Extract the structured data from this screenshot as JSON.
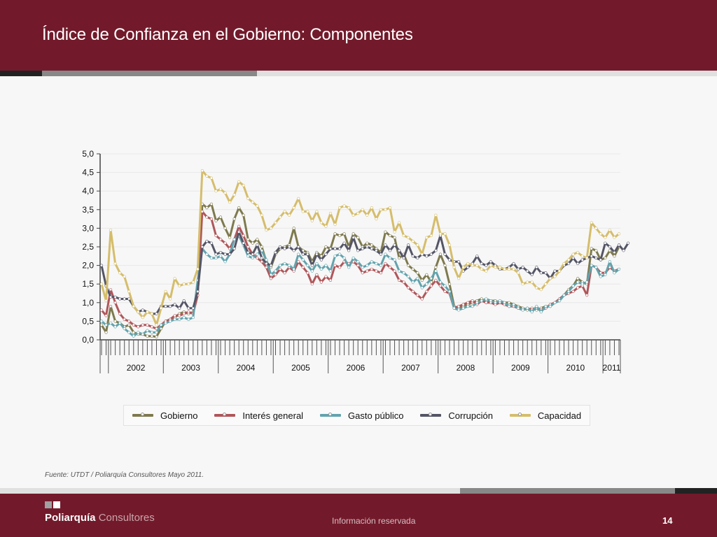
{
  "header": {
    "title": "Índice de Confianza en el Gobierno: Componentes"
  },
  "footer": {
    "source": "Fuente: UTDT / Poliarquía Consultores Mayo 2011.",
    "brand_bold": "Poliarquía",
    "brand_light": "Consultores",
    "confidential": "Información reservada",
    "page_number": "14"
  },
  "colors": {
    "header_bg": "#721a2b",
    "Gobierno": "#7e7a4e",
    "Interés general": "#b0565a",
    "Gasto público": "#62a3ad",
    "Corrupción": "#545566",
    "Capacidad": "#d5bd6b"
  },
  "chart_data": {
    "type": "line",
    "title": "",
    "xlabel": "",
    "ylabel": "",
    "ylim": [
      0,
      5
    ],
    "yticks": [
      "0,0",
      "0,5",
      "1,0",
      "1,5",
      "2,0",
      "2,5",
      "3,0",
      "3,5",
      "4,0",
      "4,5",
      "5,0"
    ],
    "year_labels": [
      "2002",
      "2003",
      "2004",
      "2005",
      "2006",
      "2007",
      "2008",
      "2009",
      "2010",
      "2011"
    ],
    "x_start": "2001-11",
    "x_end": "2011-05",
    "frequency": "monthly",
    "legend_position": "bottom",
    "grid": true,
    "series": [
      {
        "name": "Gobierno",
        "values": [
          0.4,
          0.2,
          0.9,
          0.5,
          0.45,
          0.35,
          0.4,
          0.2,
          0.15,
          0.15,
          0.1,
          0.1,
          0.08,
          0.3,
          0.5,
          0.55,
          0.6,
          0.7,
          0.75,
          0.7,
          0.75,
          1.2,
          3.65,
          3.55,
          3.65,
          3.2,
          3.3,
          3.0,
          2.75,
          3.25,
          3.55,
          3.35,
          2.7,
          2.6,
          2.7,
          2.5,
          2.1,
          1.95,
          2.3,
          2.45,
          2.5,
          2.55,
          3.0,
          2.5,
          2.4,
          2.35,
          2.1,
          2.35,
          2.25,
          2.5,
          2.45,
          2.85,
          2.8,
          2.85,
          2.5,
          2.85,
          2.75,
          2.5,
          2.6,
          2.55,
          2.45,
          2.35,
          2.9,
          2.8,
          2.75,
          2.2,
          2.3,
          2.0,
          1.9,
          1.8,
          1.6,
          1.75,
          1.55,
          1.95,
          2.3,
          2.0,
          1.5,
          0.9,
          0.85,
          0.9,
          0.95,
          1.0,
          1.05,
          1.1,
          1.0,
          1.05,
          1.05,
          1.0,
          1.0,
          1.0,
          0.95,
          0.9,
          0.85,
          0.8,
          0.85,
          0.8,
          0.85,
          0.9,
          0.9,
          1.0,
          1.05,
          1.2,
          1.35,
          1.45,
          1.65,
          1.55,
          1.5,
          2.45,
          2.4,
          2.15,
          2.2,
          2.4,
          2.25,
          2.5
        ]
      },
      {
        "name": "Interés general",
        "values": [
          0.8,
          0.65,
          1.35,
          1.0,
          0.7,
          0.55,
          0.5,
          0.4,
          0.35,
          0.4,
          0.4,
          0.35,
          0.3,
          0.4,
          0.5,
          0.55,
          0.65,
          0.65,
          0.7,
          0.75,
          0.7,
          1.2,
          3.45,
          3.3,
          3.25,
          2.8,
          2.7,
          2.6,
          2.45,
          2.7,
          3.05,
          2.8,
          2.5,
          2.3,
          2.2,
          2.1,
          1.95,
          1.65,
          1.75,
          1.9,
          1.8,
          1.95,
          1.85,
          2.1,
          1.95,
          1.8,
          1.5,
          1.75,
          1.55,
          1.7,
          1.6,
          2.0,
          1.95,
          2.1,
          2.05,
          2.1,
          2.0,
          1.8,
          1.85,
          1.9,
          1.85,
          1.8,
          2.05,
          1.95,
          1.85,
          1.6,
          1.55,
          1.4,
          1.3,
          1.2,
          1.1,
          1.3,
          1.45,
          1.6,
          1.45,
          1.3,
          1.25,
          0.85,
          0.9,
          0.95,
          1.0,
          1.05,
          0.95,
          1.05,
          1.0,
          1.0,
          0.95,
          1.0,
          0.95,
          0.9,
          0.9,
          0.85,
          0.8,
          0.85,
          0.8,
          0.85,
          0.8,
          0.85,
          0.95,
          1.0,
          1.1,
          1.2,
          1.25,
          1.3,
          1.4,
          1.45,
          1.2,
          2.0,
          1.95,
          1.8,
          1.8,
          1.95,
          1.85,
          1.9
        ]
      },
      {
        "name": "Gasto público",
        "values": [
          0.5,
          0.4,
          0.45,
          0.35,
          0.45,
          0.3,
          0.2,
          0.1,
          0.2,
          0.15,
          0.25,
          0.2,
          0.2,
          0.4,
          0.45,
          0.5,
          0.55,
          0.55,
          0.6,
          0.55,
          0.6,
          1.6,
          2.45,
          2.3,
          2.2,
          2.2,
          2.25,
          2.1,
          2.3,
          2.7,
          2.8,
          2.55,
          2.25,
          2.2,
          2.3,
          2.4,
          2.15,
          1.75,
          1.85,
          2.0,
          2.05,
          2.0,
          1.9,
          2.3,
          2.15,
          2.0,
          1.85,
          2.05,
          1.9,
          2.0,
          1.85,
          2.25,
          2.3,
          2.2,
          1.95,
          2.2,
          2.1,
          1.95,
          2.0,
          2.1,
          2.05,
          2.0,
          2.3,
          2.2,
          2.15,
          1.85,
          1.8,
          1.7,
          1.55,
          1.65,
          1.4,
          1.5,
          1.65,
          1.85,
          1.55,
          1.45,
          1.3,
          0.85,
          0.8,
          0.85,
          0.9,
          0.9,
          1.0,
          1.05,
          1.1,
          1.05,
          1.0,
          1.05,
          1.0,
          0.9,
          0.95,
          0.85,
          0.8,
          0.85,
          0.75,
          0.9,
          0.75,
          0.9,
          0.9,
          1.0,
          1.05,
          1.2,
          1.3,
          1.45,
          1.55,
          1.5,
          1.55,
          2.0,
          1.95,
          1.7,
          1.75,
          2.1,
          1.8,
          1.9
        ]
      },
      {
        "name": "Corrupción",
        "values": [
          2.0,
          1.45,
          1.15,
          1.15,
          1.1,
          1.1,
          1.1,
          0.9,
          0.75,
          0.8,
          0.75,
          0.7,
          0.7,
          0.9,
          0.9,
          0.9,
          0.95,
          0.85,
          1.05,
          0.85,
          0.85,
          1.3,
          2.5,
          2.65,
          2.6,
          2.3,
          2.35,
          2.3,
          2.3,
          2.45,
          2.9,
          2.6,
          2.35,
          2.3,
          2.55,
          2.2,
          2.05,
          2.0,
          2.35,
          2.5,
          2.45,
          2.5,
          2.4,
          2.5,
          2.3,
          2.3,
          2.0,
          2.3,
          2.15,
          2.3,
          2.45,
          2.45,
          2.45,
          2.6,
          2.4,
          2.75,
          2.4,
          2.45,
          2.5,
          2.45,
          2.4,
          2.3,
          2.55,
          2.4,
          2.55,
          2.4,
          2.2,
          2.55,
          2.25,
          2.2,
          2.3,
          2.25,
          2.3,
          2.4,
          2.8,
          2.3,
          2.15,
          2.1,
          2.1,
          1.85,
          1.95,
          2.05,
          2.25,
          2.05,
          2.0,
          2.1,
          2.0,
          1.9,
          1.9,
          1.95,
          2.05,
          1.9,
          1.95,
          1.85,
          1.75,
          1.95,
          1.8,
          1.8,
          1.65,
          1.85,
          1.85,
          2.0,
          2.05,
          2.2,
          2.05,
          2.15,
          2.2,
          2.25,
          2.2,
          2.15,
          2.6,
          2.5,
          2.35,
          2.55,
          2.4,
          2.6
        ]
      },
      {
        "name": "Capacidad",
        "values": [
          1.5,
          1.05,
          2.95,
          2.05,
          1.8,
          1.7,
          1.3,
          0.9,
          0.75,
          0.6,
          0.75,
          0.7,
          0.4,
          0.85,
          1.3,
          1.1,
          1.65,
          1.45,
          1.5,
          1.5,
          1.55,
          1.9,
          4.55,
          4.4,
          4.35,
          4.0,
          4.05,
          3.95,
          3.7,
          3.9,
          4.25,
          4.15,
          3.8,
          3.7,
          3.6,
          3.35,
          2.95,
          3.0,
          3.15,
          3.3,
          3.45,
          3.35,
          3.55,
          3.8,
          3.45,
          3.45,
          3.2,
          3.45,
          3.15,
          3.05,
          3.4,
          3.1,
          3.55,
          3.6,
          3.55,
          3.35,
          3.4,
          3.5,
          3.35,
          3.55,
          3.25,
          3.5,
          3.5,
          3.55,
          2.9,
          3.15,
          2.8,
          2.75,
          2.65,
          2.55,
          2.3,
          2.75,
          2.8,
          3.35,
          2.85,
          2.85,
          2.55,
          1.95,
          1.65,
          1.95,
          2.05,
          2.0,
          2.0,
          1.9,
          1.85,
          2.0,
          1.95,
          1.95,
          1.9,
          1.9,
          1.9,
          1.8,
          1.5,
          1.55,
          1.55,
          1.4,
          1.35,
          1.5,
          1.65,
          1.7,
          1.85,
          2.05,
          2.15,
          2.3,
          2.35,
          2.25,
          2.2,
          3.15,
          3.0,
          2.85,
          2.75,
          2.95,
          2.75,
          2.85
        ]
      }
    ]
  }
}
